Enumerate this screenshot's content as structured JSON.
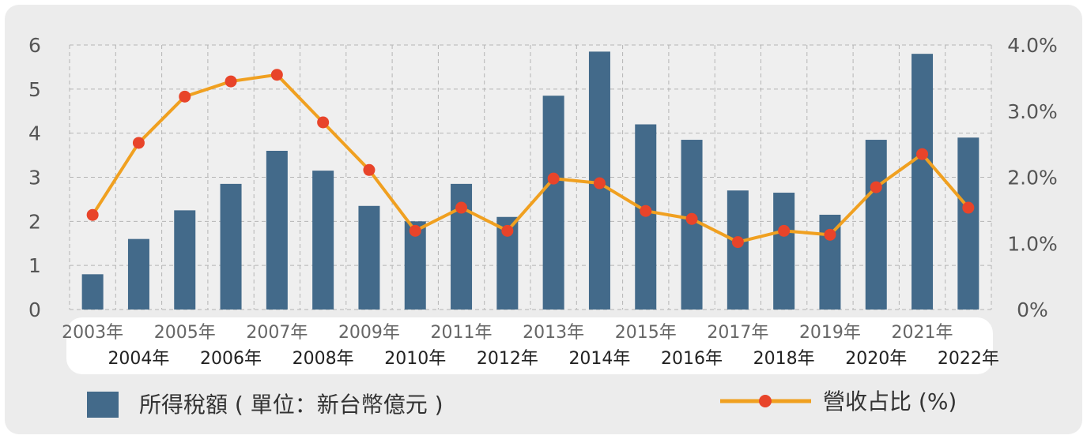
{
  "chart_data": {
    "type": "bar+line",
    "categories": [
      "2003年",
      "2004年",
      "2005年",
      "2006年",
      "2007年",
      "2008年",
      "2009年",
      "2010年",
      "2011年",
      "2012年",
      "2013年",
      "2014年",
      "2015年",
      "2016年",
      "2017年",
      "2018年",
      "2019年",
      "2020年",
      "2021年",
      "2022年"
    ],
    "series": [
      {
        "name": "所得稅額 ( 單位：新台幣億元 )",
        "type": "bar",
        "axis": "left",
        "color": "#436a8a",
        "values": [
          0.8,
          1.6,
          2.25,
          2.85,
          3.6,
          3.15,
          2.35,
          2.0,
          2.85,
          2.1,
          4.85,
          5.85,
          4.2,
          3.85,
          2.7,
          2.65,
          2.15,
          3.85,
          5.8,
          3.9
        ]
      },
      {
        "name": "營收占比 (%)",
        "type": "line",
        "axis": "right",
        "color": "#f0a020",
        "marker_color": "#e8442a",
        "values": [
          1.43,
          2.52,
          3.22,
          3.45,
          3.55,
          2.83,
          2.11,
          1.19,
          1.54,
          1.19,
          1.98,
          1.91,
          1.49,
          1.37,
          1.02,
          1.19,
          1.13,
          1.85,
          2.35,
          1.54
        ]
      }
    ],
    "y_left": {
      "ylim": [
        0,
        6
      ],
      "ticks": [
        "0",
        "1",
        "2",
        "3",
        "4",
        "5",
        "6"
      ]
    },
    "y_right": {
      "ylim": [
        0,
        4
      ],
      "ticks": [
        "0%",
        "1.0%",
        "2.0%",
        "3.0%",
        "4.0%"
      ]
    },
    "grid": true,
    "legend_position": "bottom"
  }
}
